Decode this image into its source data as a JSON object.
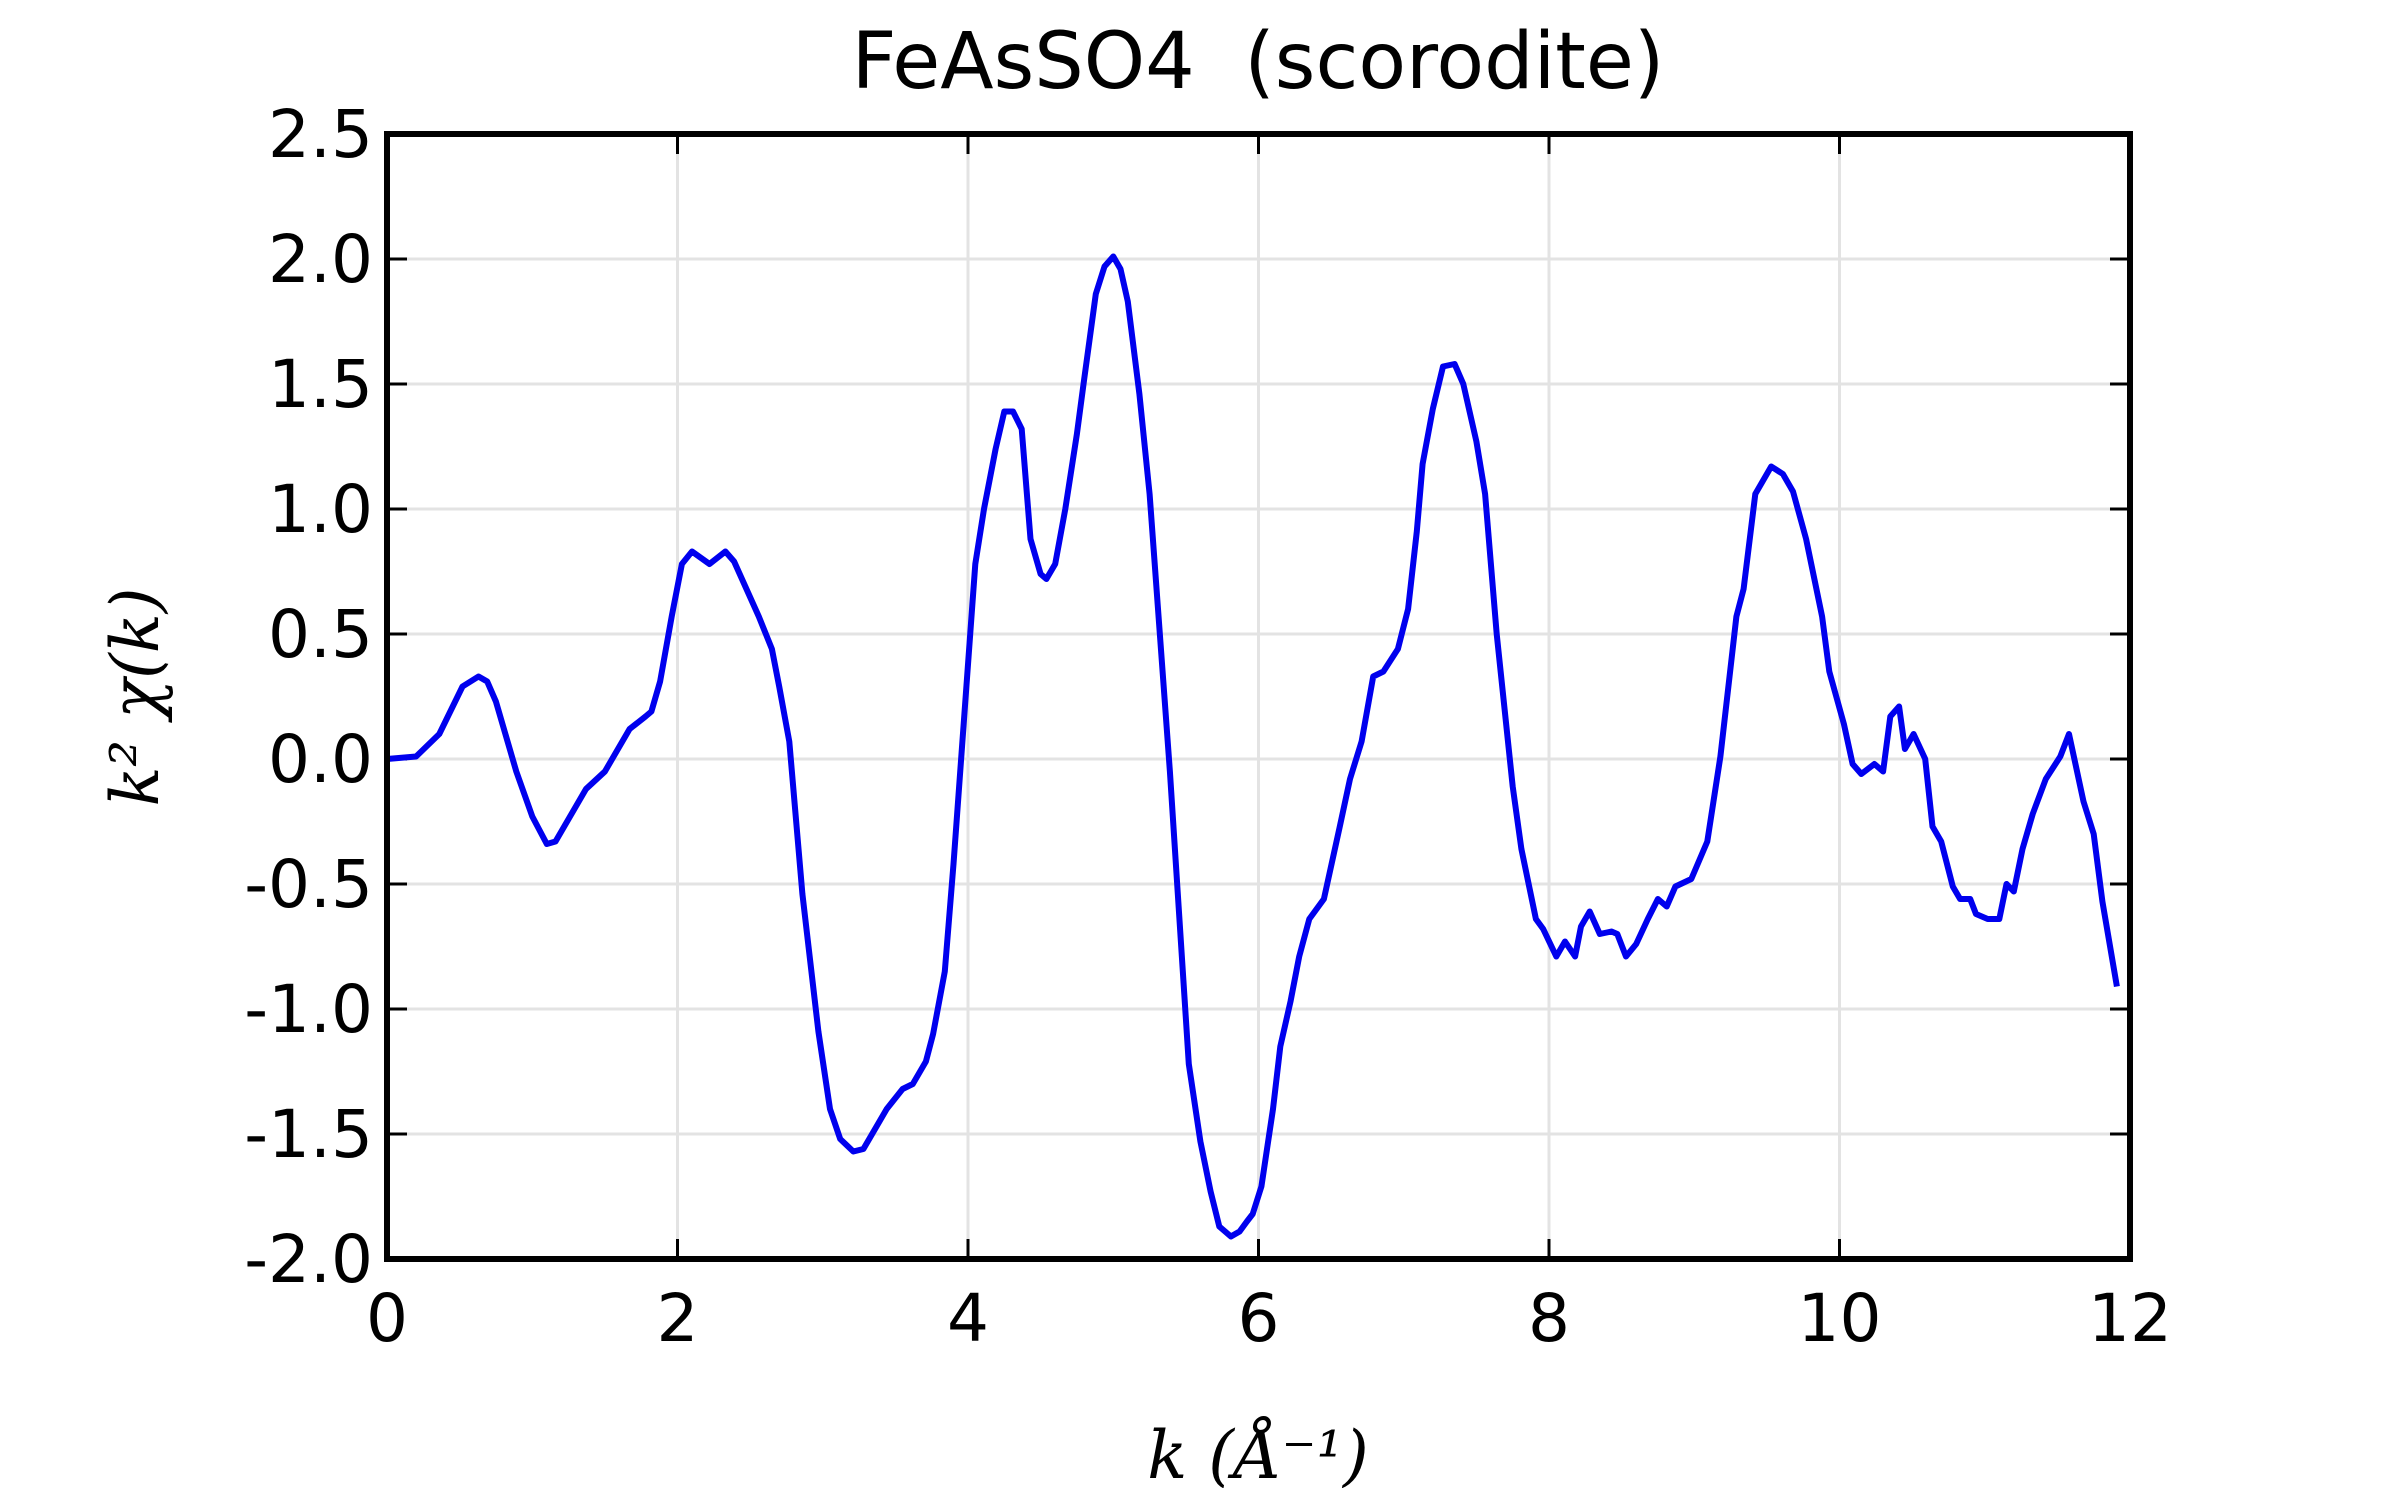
{
  "chart_data": {
    "type": "line",
    "title": "FeAsSO4  (scorodite)",
    "xlabel": "k (Å⁻¹)",
    "ylabel": "k² χ(k)",
    "xlim": [
      0,
      12
    ],
    "ylim": [
      -2.0,
      2.5
    ],
    "xticks": [
      "0",
      "2",
      "4",
      "6",
      "8",
      "10",
      "12"
    ],
    "yticks": [
      "-2.0",
      "-1.5",
      "-1.0",
      "-0.5",
      "0.0",
      "0.5",
      "1.0",
      "1.5",
      "2.0",
      "2.5"
    ],
    "grid": true,
    "series": [
      {
        "name": "scorodite",
        "color": "#0000ee",
        "x": [
          0,
          0.2,
          0.36,
          0.52,
          0.63,
          0.69,
          0.75,
          0.89,
          1.0,
          1.1,
          1.16,
          1.37,
          1.5,
          1.67,
          1.78,
          1.82,
          1.88,
          1.96,
          2.03,
          2.1,
          2.22,
          2.33,
          2.39,
          2.56,
          2.65,
          2.7,
          2.77,
          2.86,
          2.97,
          3.05,
          3.12,
          3.21,
          3.28,
          3.44,
          3.55,
          3.62,
          3.71,
          3.76,
          3.84,
          3.9,
          4.05,
          4.11,
          4.19,
          4.25,
          4.31,
          4.37,
          4.43,
          4.5,
          4.54,
          4.6,
          4.67,
          4.75,
          4.8,
          4.88,
          4.94,
          5.0,
          5.05,
          5.1,
          5.18,
          5.25,
          5.39,
          5.52,
          5.6,
          5.67,
          5.73,
          5.81,
          5.87,
          5.92,
          5.96,
          6.02,
          6.1,
          6.15,
          6.22,
          6.28,
          6.35,
          6.45,
          6.56,
          6.63,
          6.71,
          6.79,
          6.86,
          6.96,
          7.03,
          7.09,
          7.13,
          7.2,
          7.27,
          7.35,
          7.41,
          7.5,
          7.56,
          7.64,
          7.75,
          7.81,
          7.91,
          7.96,
          8.05,
          8.11,
          8.18,
          8.22,
          8.28,
          8.35,
          8.43,
          8.47,
          8.53,
          8.6,
          8.68,
          8.75,
          8.81,
          8.87,
          8.98,
          9.09,
          9.18,
          9.29,
          9.34,
          9.42,
          9.53,
          9.61,
          9.68,
          9.77,
          9.88,
          9.93,
          10.03,
          10.09,
          10.15,
          10.24,
          10.3,
          10.35,
          10.41,
          10.45,
          10.51,
          10.59,
          10.64,
          10.7,
          10.78,
          10.83,
          10.9,
          10.94,
          11.02,
          11.1,
          11.15,
          11.2,
          11.26,
          11.33,
          11.42,
          11.52,
          11.58,
          11.68,
          11.75,
          11.81,
          11.91
        ],
        "y": [
          0,
          0.01,
          0.1,
          0.29,
          0.33,
          0.31,
          0.23,
          -0.05,
          -0.23,
          -0.34,
          -0.33,
          -0.12,
          -0.05,
          0.12,
          0.17,
          0.19,
          0.31,
          0.57,
          0.78,
          0.83,
          0.78,
          0.83,
          0.79,
          0.57,
          0.44,
          0.29,
          0.07,
          -0.54,
          -1.09,
          -1.4,
          -1.52,
          -1.57,
          -1.56,
          -1.4,
          -1.32,
          -1.3,
          -1.21,
          -1.1,
          -0.85,
          -0.42,
          0.78,
          1.0,
          1.24,
          1.39,
          1.39,
          1.32,
          0.88,
          0.74,
          0.72,
          0.78,
          1.0,
          1.3,
          1.52,
          1.86,
          1.97,
          2.01,
          1.96,
          1.83,
          1.46,
          1.06,
          -0.05,
          -1.22,
          -1.53,
          -1.73,
          -1.87,
          -1.91,
          -1.89,
          -1.85,
          -1.82,
          -1.71,
          -1.4,
          -1.15,
          -0.97,
          -0.79,
          -0.64,
          -0.56,
          -0.27,
          -0.08,
          0.07,
          0.33,
          0.35,
          0.44,
          0.6,
          0.91,
          1.18,
          1.4,
          1.57,
          1.58,
          1.5,
          1.27,
          1.06,
          0.5,
          -0.11,
          -0.36,
          -0.64,
          -0.68,
          -0.79,
          -0.73,
          -0.79,
          -0.67,
          -0.61,
          -0.7,
          -0.69,
          -0.7,
          -0.79,
          -0.74,
          -0.64,
          -0.56,
          -0.59,
          -0.51,
          -0.48,
          -0.33,
          0.01,
          0.57,
          0.68,
          1.06,
          1.17,
          1.14,
          1.07,
          0.88,
          0.57,
          0.35,
          0.14,
          -0.02,
          -0.06,
          -0.02,
          -0.05,
          0.17,
          0.21,
          0.04,
          0.1,
          0.0,
          -0.27,
          -0.33,
          -0.51,
          -0.56,
          -0.56,
          -0.62,
          -0.64,
          -0.64,
          -0.5,
          -0.53,
          -0.36,
          -0.22,
          -0.08,
          0.01,
          0.1,
          -0.17,
          -0.3,
          -0.57,
          -0.91
        ]
      }
    ]
  }
}
